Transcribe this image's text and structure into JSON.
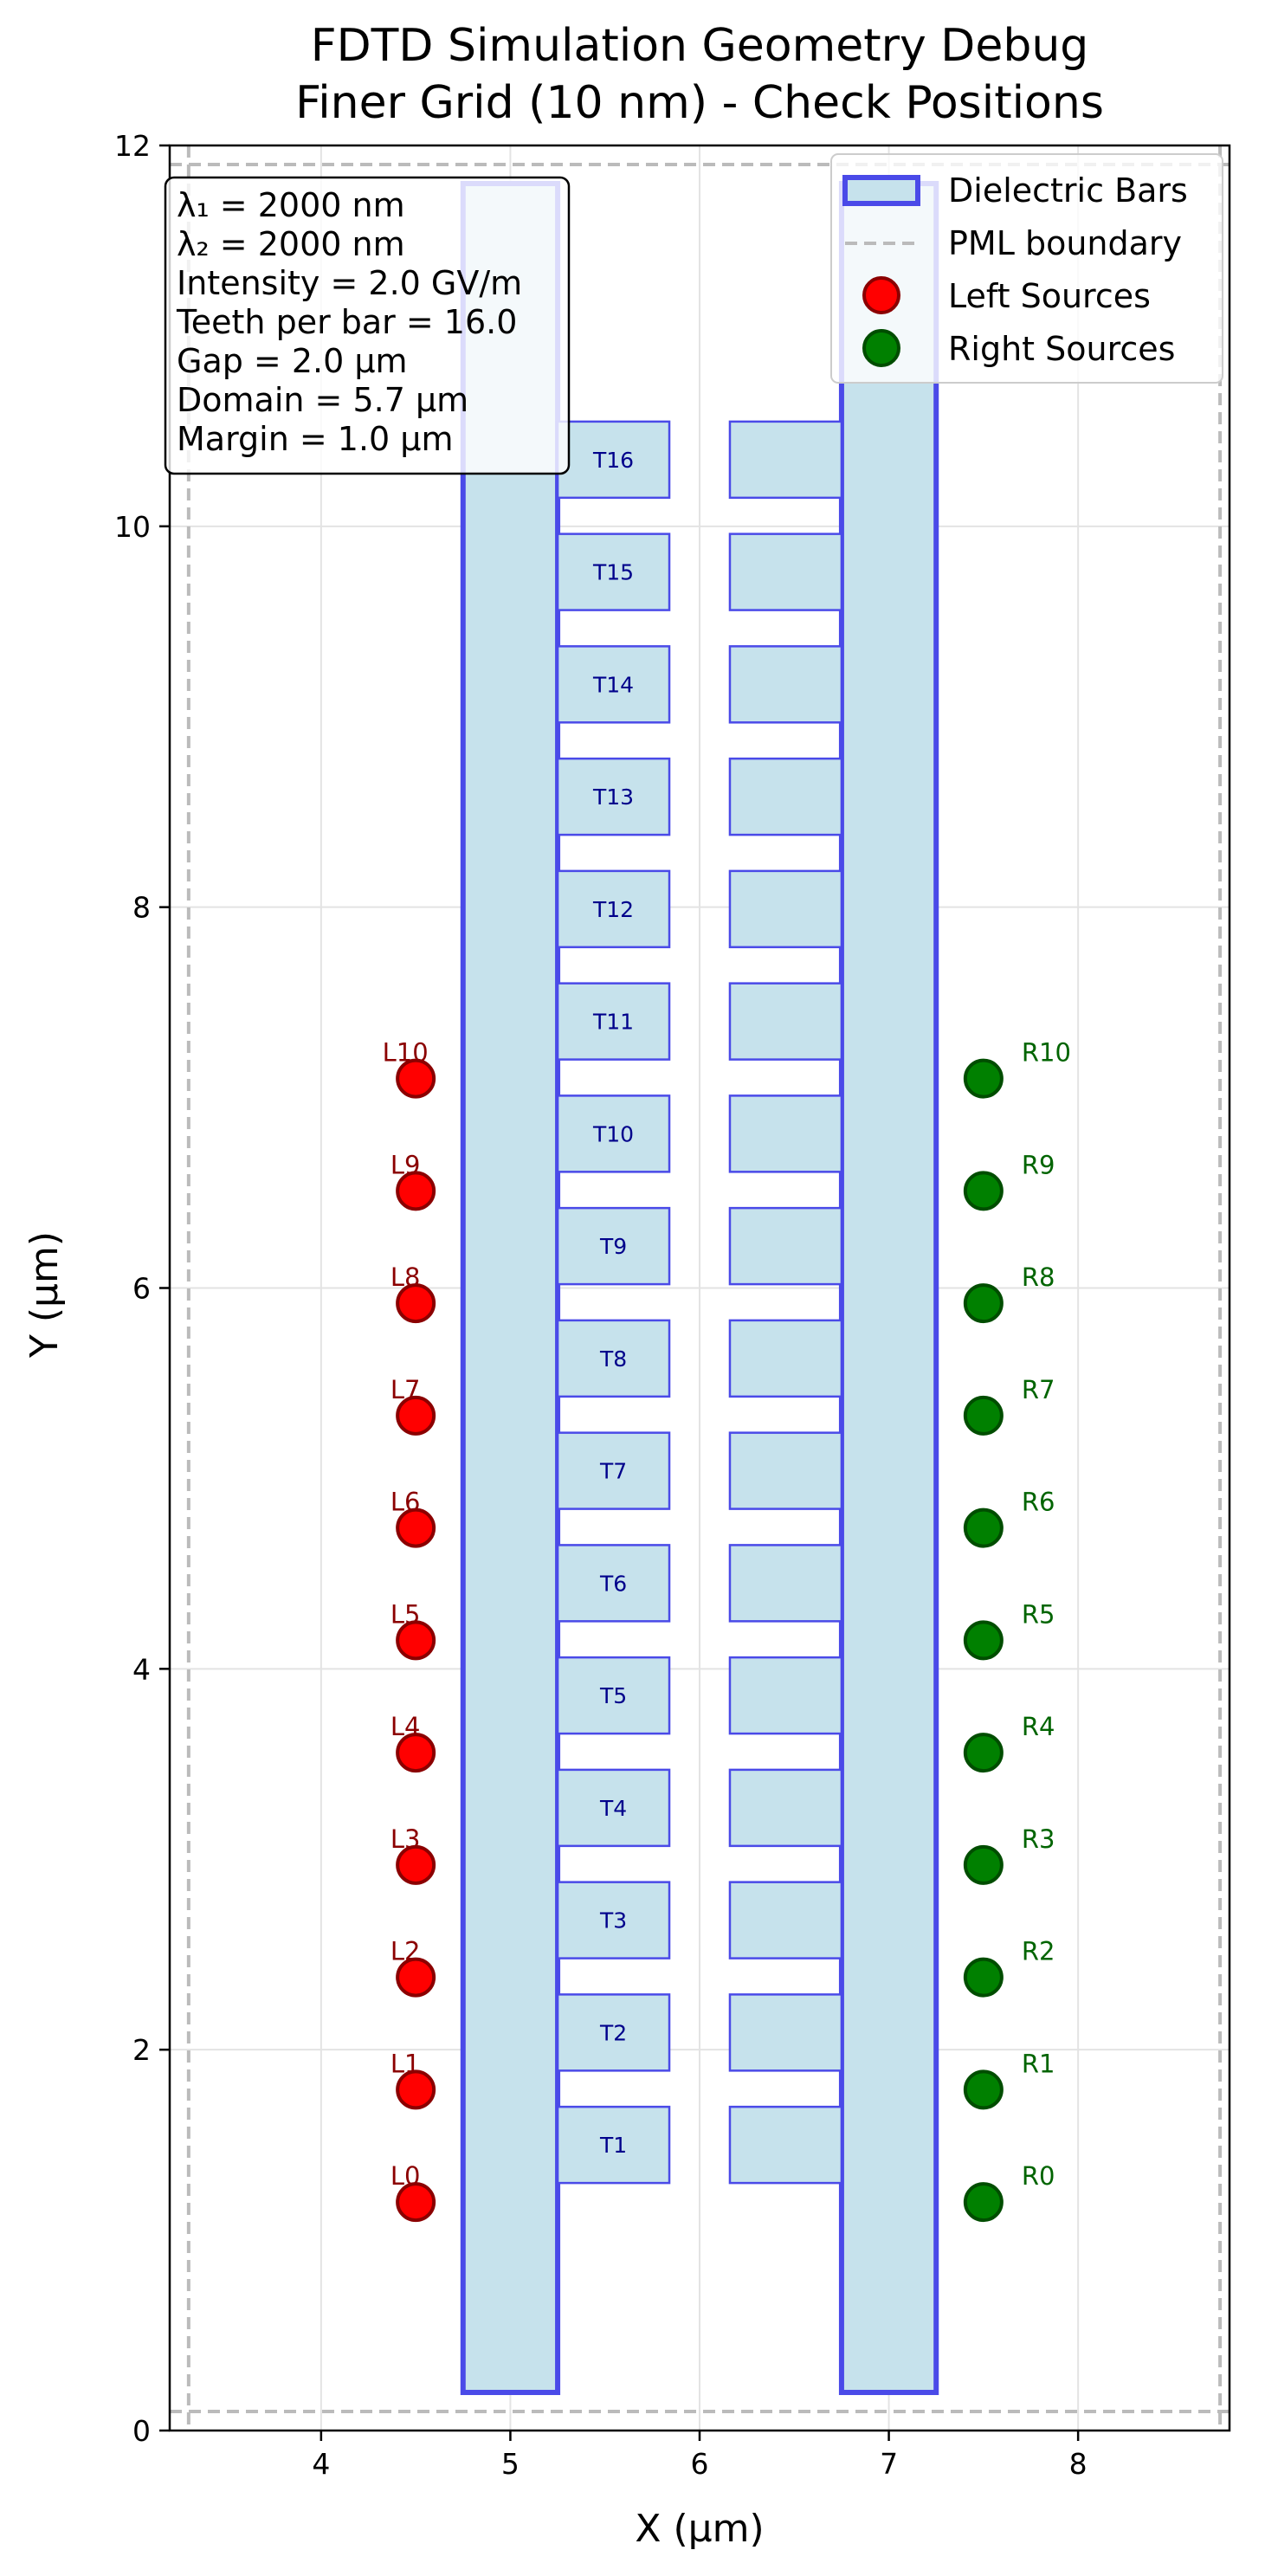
{
  "chart_data": {
    "type": "scatter",
    "title": "FDTD Simulation Geometry Debug",
    "subtitle": "Finer Grid (10 nm) - Check Positions",
    "xlabel": "X (μm)",
    "ylabel": "Y (μm)",
    "xlim": [
      3.2,
      8.8
    ],
    "ylim": [
      0,
      12
    ],
    "xticks": [
      4,
      5,
      6,
      7,
      8
    ],
    "yticks": [
      0,
      2,
      4,
      6,
      8,
      10,
      12
    ],
    "grid": true,
    "legend_position": "top-right",
    "legend": [
      {
        "label": "Dielectric Bars",
        "kind": "patch"
      },
      {
        "label": "PML boundary",
        "kind": "dashed-line"
      },
      {
        "label": "Left Sources",
        "kind": "red-marker"
      },
      {
        "label": "Right Sources",
        "kind": "green-marker"
      }
    ],
    "info_box": [
      "λ₁ = 2000 nm",
      "λ₂ = 2000 nm",
      "Intensity = 2.0 GV/m",
      "Teeth per bar = 16.0",
      "Gap = 2.0 μm",
      "Domain = 5.7 μm",
      "Margin = 1.0 μm"
    ],
    "pml_boundary": {
      "x": [
        3.3,
        8.75
      ],
      "y": [
        0.1,
        11.9
      ]
    },
    "bars": [
      {
        "x0": 4.75,
        "x1": 5.25,
        "y0": 0.2,
        "y1": 11.8
      },
      {
        "x0": 6.75,
        "x1": 7.25,
        "y0": 0.2,
        "y1": 11.8
      }
    ],
    "teeth_left": {
      "x0": 5.25,
      "x1": 5.84,
      "height": 0.4,
      "labels": [
        "T1",
        "T2",
        "T3",
        "T4",
        "T5",
        "T6",
        "T7",
        "T8",
        "T9",
        "T10",
        "T11",
        "T12",
        "T13",
        "T14",
        "T15",
        "T16"
      ],
      "centers_y": [
        1.5,
        2.09,
        2.68,
        3.27,
        3.86,
        4.45,
        5.04,
        5.63,
        6.22,
        6.81,
        7.4,
        7.99,
        8.58,
        9.17,
        9.76,
        10.35
      ]
    },
    "teeth_right": {
      "x0": 6.16,
      "x1": 6.75,
      "height": 0.4,
      "centers_y": [
        1.5,
        2.09,
        2.68,
        3.27,
        3.86,
        4.45,
        5.04,
        5.63,
        6.22,
        6.81,
        7.4,
        7.99,
        8.58,
        9.17,
        9.76,
        10.35
      ]
    },
    "left_sources": {
      "name": "Left Sources",
      "x": 4.5,
      "labels": [
        "L0",
        "L1",
        "L2",
        "L3",
        "L4",
        "L5",
        "L6",
        "L7",
        "L8",
        "L9",
        "L10"
      ],
      "y": [
        1.2,
        1.79,
        2.38,
        2.97,
        3.56,
        4.15,
        4.74,
        5.33,
        5.92,
        6.51,
        7.1
      ]
    },
    "right_sources": {
      "name": "Right Sources",
      "x": 7.5,
      "labels": [
        "R0",
        "R1",
        "R2",
        "R3",
        "R4",
        "R5",
        "R6",
        "R7",
        "R8",
        "R9",
        "R10"
      ],
      "y": [
        1.2,
        1.79,
        2.38,
        2.97,
        3.56,
        4.15,
        4.74,
        5.33,
        5.92,
        6.51,
        7.1
      ]
    },
    "colors": {
      "bar_fill": "#c6e2ec",
      "bar_edge": "#4a4ae8",
      "tooth_edge": "#4a4ae8",
      "pml": "#bbbbbb",
      "left_source": "#ff0000",
      "left_source_edge": "#8b0000",
      "right_source": "#008000",
      "right_source_edge": "#004d00",
      "tooth_label": "#00008b"
    }
  }
}
